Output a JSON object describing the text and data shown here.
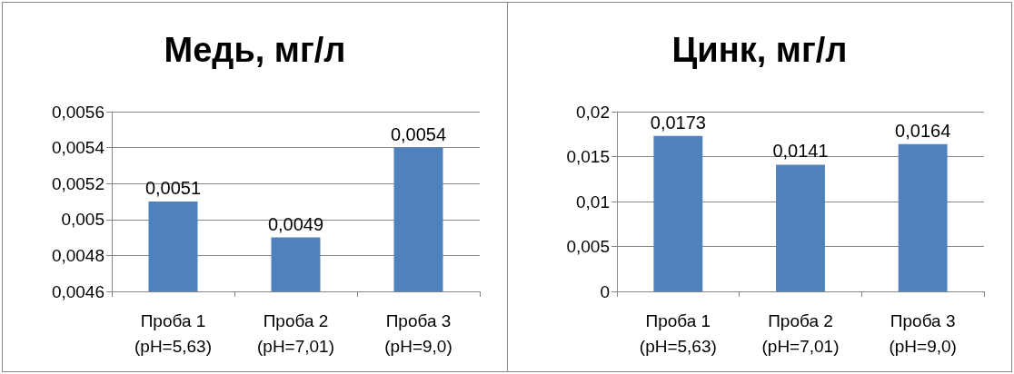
{
  "chart_data": [
    {
      "type": "bar",
      "title": "Медь, мг/л",
      "categories": [
        "Проба 1\n(pH=5,63)",
        "Проба 2\n(pH=7,01)",
        "Проба 3\n(pH=9,0)"
      ],
      "values": [
        0.0051,
        0.0049,
        0.0054
      ],
      "color": "#4f81bd",
      "value_labels": [
        "0,0051",
        "0,0049",
        "0,0054"
      ],
      "ylim": [
        0.0046,
        0.0056
      ],
      "yticks": [
        {
          "value": 0.0046,
          "label": "0,0046"
        },
        {
          "value": 0.0048,
          "label": "0,0048"
        },
        {
          "value": 0.005,
          "label": "0,005"
        },
        {
          "value": 0.0052,
          "label": "0,0052"
        },
        {
          "value": 0.0054,
          "label": "0,0054"
        },
        {
          "value": 0.0056,
          "label": "0,0056"
        }
      ],
      "grid": "y"
    },
    {
      "type": "bar",
      "title": "Цинк, мг/л",
      "categories": [
        "Проба 1\n(pH=5,63)",
        "Проба 2\n(pH=7,01)",
        "Проба 3\n(pH=9,0)"
      ],
      "values": [
        0.0173,
        0.0141,
        0.0164
      ],
      "color": "#4f81bd",
      "value_labels": [
        "0,0173",
        "0,0141",
        "0,0164"
      ],
      "ylim": [
        0,
        0.02
      ],
      "yticks": [
        0,
        {
          "value": 0.005,
          "label": "0,005"
        },
        {
          "value": 0.01,
          "label": "0,01"
        },
        {
          "value": 0.015,
          "label": "0,015"
        },
        {
          "value": 0.02,
          "label": "0,02"
        }
      ],
      "grid": "y"
    }
  ]
}
